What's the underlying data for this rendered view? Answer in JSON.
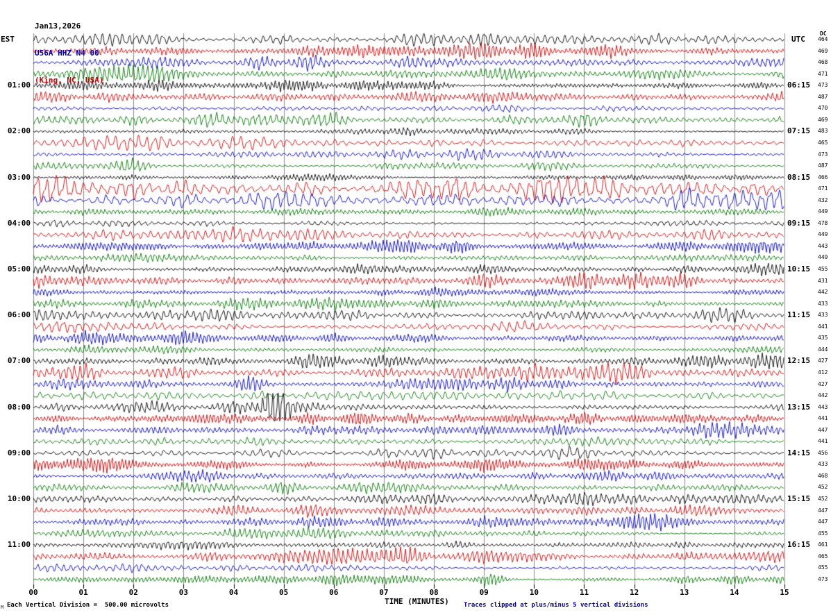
{
  "chart_data": {
    "type": "line",
    "subtype": "helicorder-seismogram",
    "title_lines": [
      "Jan13,2026",
      "U56A HHZ N4 00",
      "(King, NC, USA)"
    ],
    "title_colors": [
      "#000000",
      "#0000bb",
      "#cc0000"
    ],
    "left_axis_label": "EST",
    "right_axis_label": "UTC",
    "dc_header": "DC",
    "xlabel": "TIME (MINUTES)",
    "x_tick_labels": [
      "00",
      "01",
      "02",
      "03",
      "04",
      "05",
      "06",
      "07",
      "08",
      "09",
      "10",
      "11",
      "12",
      "13",
      "14",
      "15"
    ],
    "x_range_minutes": [
      0,
      15
    ],
    "rows": 48,
    "rows_per_hour": 4,
    "minutes_per_row": 15,
    "left_hour_labels": [
      "01:00",
      "02:00",
      "03:00",
      "04:00",
      "05:00",
      "06:00",
      "07:00",
      "08:00",
      "09:00",
      "10:00",
      "11:00"
    ],
    "right_hour_labels": [
      "06:15",
      "07:15",
      "08:15",
      "09:15",
      "10:15",
      "11:15",
      "12:15",
      "13:15",
      "14:15",
      "15:15",
      "16:15"
    ],
    "dc_values": [
      464,
      469,
      468,
      471,
      473,
      487,
      470,
      469,
      483,
      465,
      473,
      487,
      466,
      471,
      432,
      449,
      478,
      449,
      443,
      449,
      455,
      431,
      442,
      433,
      433,
      441,
      435,
      444,
      427,
      412,
      427,
      442,
      443,
      441,
      447,
      441,
      456,
      433,
      468,
      452,
      452,
      447,
      447,
      455,
      461,
      465,
      455,
      473
    ],
    "trace_colors": [
      "#000000",
      "#d40000",
      "#0000cc",
      "#007700"
    ],
    "grid_color": "#8a8a8a",
    "tick_color": "#000000",
    "high_activity_rows": [
      13,
      14
    ],
    "events": [
      {
        "row": 11,
        "minute": 2.05
      },
      {
        "row": 30,
        "minute": 2.25
      },
      {
        "row": 30,
        "minute": 4.35
      },
      {
        "row": 32,
        "minute": 4.8
      },
      {
        "row": 47,
        "minute": 9.2
      }
    ],
    "footer_left": "Each Vertical Division =  500.00 microvolts",
    "footer_right": "Traces clipped at plus/minus 5 vertical divisions",
    "footer_right_color": "#0000bb",
    "corner_mark": "M"
  }
}
